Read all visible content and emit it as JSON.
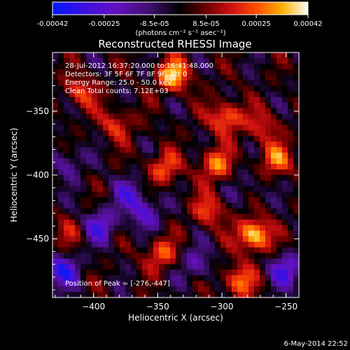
{
  "colorbar": {
    "tick_labels": [
      "-0.00042",
      "-0.00025",
      "-8.5e-05",
      "8.5e-05",
      "0.00025",
      "0.00042"
    ],
    "tick_values": [
      -0.00042,
      -0.00025,
      -8.5e-05,
      8.5e-05,
      0.00025,
      0.00042
    ],
    "range": [
      -0.00042,
      0.00042
    ],
    "units": "(photons cm⁻² s⁻¹ asec⁻²)"
  },
  "image_header": {
    "time_range": "28-Jul-2012 16:37:20.000 to 16:41:48.000",
    "detectors": "Detectors: 3F 5F 6F 7F 8F 9F, Att 0",
    "energy": "Energy Range: 25.0 - 50.0 keV",
    "clean": "Clean    Total counts: 7.12E+03"
  },
  "peak_label": "Position of Peak = [-276,-447]",
  "timestamp": "6-May-2014 22:52",
  "chart_data": {
    "type": "heatmap",
    "title": "Reconstructed RHESSI Image",
    "xlabel": "Heliocentric X (arcsec)",
    "ylabel": "Heliocentric Y (arcsec)",
    "xlim": [
      -432,
      -240
    ],
    "ylim": [
      -496,
      -304
    ],
    "xticks": [
      -400,
      -350,
      -300,
      -250
    ],
    "yticks": [
      -350,
      -400,
      -450
    ],
    "colormap": "RHESSI blue-purple-black-red-yellow-white",
    "peak": [
      -276,
      -447
    ],
    "sources": [
      {
        "x": -275,
        "y": -447,
        "value": 0.00042
      },
      {
        "x": -338,
        "y": -322,
        "value": 0.00036
      },
      {
        "x": -297,
        "y": -355,
        "value": 0.0003
      },
      {
        "x": -305,
        "y": -392,
        "value": 0.00028
      },
      {
        "x": -258,
        "y": -388,
        "value": 0.00026
      },
      {
        "x": -345,
        "y": -395,
        "value": 0.00024
      },
      {
        "x": -410,
        "y": -335,
        "value": 0.00022
      },
      {
        "x": -382,
        "y": -360,
        "value": 0.0002
      },
      {
        "x": -287,
        "y": -483,
        "value": 0.00028
      },
      {
        "x": -348,
        "y": -462,
        "value": 0.00024
      },
      {
        "x": -310,
        "y": -428,
        "value": 0.00022
      },
      {
        "x": -268,
        "y": -362,
        "value": 0.00018
      },
      {
        "x": -420,
        "y": -445,
        "value": 0.00012
      },
      {
        "x": -372,
        "y": -415,
        "value": -0.0002
      },
      {
        "x": -395,
        "y": -440,
        "value": -0.00026
      },
      {
        "x": -250,
        "y": -475,
        "value": -0.00028
      },
      {
        "x": -425,
        "y": -475,
        "value": -0.00032
      },
      {
        "x": -320,
        "y": -470,
        "value": -0.00018
      },
      {
        "x": -360,
        "y": -430,
        "value": -0.00022
      },
      {
        "x": -420,
        "y": -390,
        "value": -0.00016
      },
      {
        "x": -280,
        "y": -410,
        "value": -0.0001
      }
    ]
  }
}
